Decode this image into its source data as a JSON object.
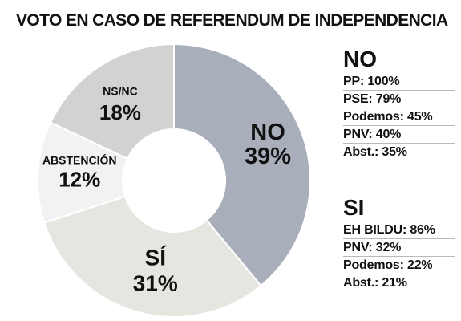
{
  "chart_data": {
    "type": "pie",
    "title": "VOTO EN CASO DE REFERENDUM DE INDEPENDENCIA",
    "slices": [
      {
        "label": "NO",
        "value": 39,
        "value_label": "39%",
        "color": "#a8aeba"
      },
      {
        "label": "SÍ",
        "value": 31,
        "value_label": "31%",
        "color": "#e6e6e0"
      },
      {
        "label": "ABSTENCIÓN",
        "value": 12,
        "value_label": "12%",
        "color": "#f2f2f2"
      },
      {
        "label": "NS/NC",
        "value": 18,
        "value_label": "18%",
        "color": "#d2d2d2"
      }
    ],
    "breakdown": {
      "no": {
        "heading": "NO",
        "rows": [
          "PP: 100%",
          "PSE: 79%",
          "Podemos: 45%",
          "PNV: 40%",
          "Abst.: 35%"
        ]
      },
      "si": {
        "heading": "SI",
        "rows": [
          "EH BILDU: 86%",
          "PNV: 32%",
          "Podemos: 22%",
          "Abst.: 21%"
        ]
      }
    }
  }
}
